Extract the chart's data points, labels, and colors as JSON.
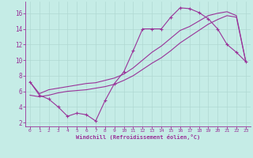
{
  "xlabel": "Windchill (Refroidissement éolien,°C)",
  "bg_color": "#c5ece6",
  "line_color": "#993399",
  "grid_color": "#b0d8d2",
  "xlim": [
    -0.5,
    23.5
  ],
  "ylim": [
    1.5,
    17.5
  ],
  "xticks": [
    0,
    1,
    2,
    3,
    4,
    5,
    6,
    7,
    8,
    9,
    10,
    11,
    12,
    13,
    14,
    15,
    16,
    17,
    18,
    19,
    20,
    21,
    22,
    23
  ],
  "yticks": [
    2,
    4,
    6,
    8,
    10,
    12,
    14,
    16
  ],
  "series1_x": [
    0,
    1,
    2,
    3,
    4,
    5,
    6,
    7,
    8,
    9,
    10,
    11,
    12,
    13,
    14,
    15,
    16,
    17,
    18,
    19,
    20,
    21,
    22,
    23
  ],
  "series1_y": [
    7.2,
    5.5,
    5.0,
    4.0,
    2.8,
    3.2,
    3.0,
    2.2,
    4.8,
    7.0,
    8.5,
    11.2,
    14.0,
    14.0,
    14.0,
    15.5,
    16.7,
    16.6,
    16.1,
    15.3,
    14.0,
    12.0,
    11.0,
    9.8
  ],
  "series2_x": [
    0,
    1,
    2,
    3,
    4,
    5,
    6,
    7,
    8,
    9,
    10,
    11,
    12,
    13,
    14,
    15,
    16,
    17,
    18,
    19,
    20,
    21,
    22,
    23
  ],
  "series2_y": [
    5.5,
    5.3,
    5.5,
    5.8,
    6.0,
    6.1,
    6.2,
    6.4,
    6.6,
    6.9,
    7.4,
    8.0,
    8.8,
    9.6,
    10.3,
    11.2,
    12.2,
    13.0,
    13.8,
    14.6,
    15.2,
    15.7,
    15.5,
    9.8
  ],
  "series3_x": [
    0,
    1,
    2,
    3,
    4,
    5,
    6,
    7,
    8,
    9,
    10,
    11,
    12,
    13,
    14,
    15,
    16,
    17,
    18,
    19,
    20,
    21,
    22,
    23
  ],
  "series3_y": [
    7.2,
    5.7,
    6.2,
    6.4,
    6.6,
    6.8,
    7.0,
    7.1,
    7.4,
    7.7,
    8.2,
    9.0,
    10.0,
    11.0,
    11.8,
    12.8,
    13.8,
    14.3,
    15.0,
    15.7,
    16.0,
    16.2,
    15.7,
    9.8
  ]
}
